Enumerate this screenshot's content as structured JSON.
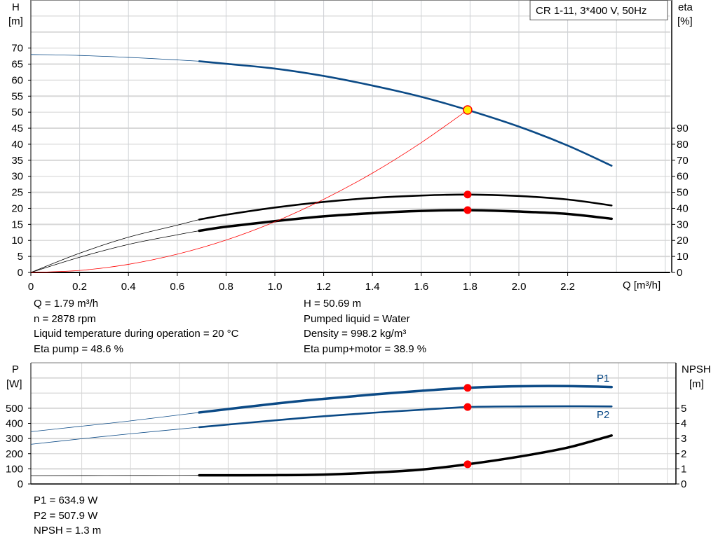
{
  "chart_data": [
    {
      "type": "line",
      "title": "CR 1-11, 3*400 V, 50Hz",
      "xlabel": "Q [m³/h]",
      "ylabel": "H\n[m]",
      "ylabel_unit": "[m]",
      "ylabel_name": "H",
      "y2label_name": "eta",
      "y2label_unit": "[%]",
      "xlim": [
        0,
        2.62
      ],
      "ylim": [
        0,
        85
      ],
      "y2lim": [
        0,
        170
      ],
      "xticks": [
        "0",
        "0.2",
        "0.4",
        "0.6",
        "0.8",
        "1.0",
        "1.2",
        "1.4",
        "1.6",
        "1.8",
        "2.0",
        "2.2"
      ],
      "yticks": [
        "0",
        "5",
        "10",
        "15",
        "20",
        "25",
        "30",
        "35",
        "40",
        "45",
        "50",
        "55",
        "60",
        "65",
        "70"
      ],
      "y2ticks": [
        "0",
        "10",
        "20",
        "30",
        "40",
        "50",
        "60",
        "70",
        "80",
        "90"
      ],
      "grid": true,
      "series": [
        {
          "key": "H",
          "axis": "left",
          "color": "#0b4a86",
          "thick_from": 0.69,
          "x": [
            0,
            0.2,
            0.4,
            0.6,
            0.69,
            0.8,
            1.0,
            1.2,
            1.4,
            1.6,
            1.79,
            2.0,
            2.2,
            2.38
          ],
          "y": [
            68,
            67.7,
            67.1,
            66.3,
            65.9,
            65.1,
            63.6,
            61.3,
            58.3,
            54.8,
            50.69,
            45.5,
            39.6,
            33.3
          ]
        },
        {
          "key": "eta_pump",
          "axis": "right",
          "color": "#000000",
          "thick_from": 0.69,
          "x": [
            0,
            0.2,
            0.4,
            0.6,
            0.69,
            0.8,
            1.0,
            1.2,
            1.4,
            1.6,
            1.79,
            2.0,
            2.2,
            2.38
          ],
          "y": [
            0,
            12,
            22,
            29.5,
            33,
            36,
            40.5,
            44,
            46.5,
            48,
            48.6,
            47.7,
            45.5,
            41.8
          ]
        },
        {
          "key": "eta_pump_motor",
          "axis": "right",
          "color": "#000000",
          "thick_from": 0.69,
          "heavy": true,
          "x": [
            0,
            0.2,
            0.4,
            0.6,
            0.69,
            0.8,
            1.0,
            1.2,
            1.4,
            1.6,
            1.79,
            2.0,
            2.2,
            2.38
          ],
          "y": [
            0,
            9.5,
            17.5,
            23.5,
            26,
            28.5,
            32,
            35,
            37,
            38.4,
            38.9,
            38,
            36.5,
            33.5
          ]
        },
        {
          "key": "system_curve",
          "axis": "left",
          "color": "#ff0000",
          "x": [
            0,
            0.2,
            0.4,
            0.6,
            0.8,
            1.0,
            1.2,
            1.4,
            1.6,
            1.79
          ],
          "y": [
            0,
            0.63,
            2.53,
            5.7,
            10.1,
            15.8,
            22.8,
            31.0,
            40.5,
            50.69
          ]
        }
      ],
      "duty_point": {
        "Q": 1.79,
        "H": 50.69,
        "eta_pump": 48.6,
        "eta_pump_motor": 38.9
      }
    },
    {
      "type": "line",
      "ylabel_name": "P",
      "ylabel_unit": "[W]",
      "y2label_name": "NPSH",
      "y2label_unit": "[m]",
      "xlim": [
        0,
        2.62
      ],
      "ylim": [
        0,
        800
      ],
      "y2lim": [
        0,
        8
      ],
      "yticks": [
        "0",
        "100",
        "200",
        "300",
        "400",
        "500"
      ],
      "y2ticks": [
        "0",
        "1",
        "2",
        "3",
        "4",
        "5"
      ],
      "grid": true,
      "series": [
        {
          "key": "P1",
          "name": "P1",
          "axis": "left",
          "color": "#0b4a86",
          "thick_from": 0.69,
          "heavy": true,
          "x": [
            0,
            0.2,
            0.4,
            0.69,
            1.0,
            1.2,
            1.4,
            1.6,
            1.79,
            2.0,
            2.2,
            2.38
          ],
          "y": [
            345,
            380,
            415,
            472,
            530,
            562,
            590,
            615,
            634.9,
            645,
            646,
            640
          ]
        },
        {
          "key": "P2",
          "name": "P2",
          "axis": "left",
          "color": "#0b4a86",
          "thick_from": 0.69,
          "x": [
            0,
            0.2,
            0.4,
            0.69,
            1.0,
            1.2,
            1.4,
            1.6,
            1.79,
            2.0,
            2.2,
            2.38
          ],
          "y": [
            262,
            297,
            330,
            375,
            420,
            447,
            470,
            490,
            507.9,
            512,
            513,
            512
          ]
        },
        {
          "key": "NPSH",
          "axis": "right",
          "color": "#000000",
          "thick_from": 0.69,
          "heavy": true,
          "x": [
            0,
            0.3,
            0.69,
            1.0,
            1.2,
            1.4,
            1.6,
            1.79,
            2.0,
            2.2,
            2.38
          ],
          "y": [
            0.55,
            0.56,
            0.57,
            0.58,
            0.62,
            0.75,
            0.95,
            1.3,
            1.8,
            2.4,
            3.2
          ]
        }
      ],
      "duty_point": {
        "Q": 1.79,
        "P1": 634.9,
        "P2": 507.9,
        "NPSH": 1.3
      }
    }
  ],
  "readout": {
    "left": [
      "Q = 1.79 m³/h",
      "n = 2878 rpm",
      "Liquid temperature during operation = 20 °C",
      "Eta pump = 48.6 %"
    ],
    "right": [
      "H = 50.69 m",
      "Pumped liquid = Water",
      "Density = 998.2 kg/m³",
      "Eta pump+motor = 38.9 %"
    ],
    "power": [
      "P1 = 634.9 W",
      "P2 = 507.9 W",
      "NPSH = 1.3 m"
    ]
  },
  "colors": {
    "curve_blue": "#0b4a86",
    "duty_marker": "#ff0000",
    "duty_fill": "#ffee00",
    "grid": "#d8d8d8"
  }
}
